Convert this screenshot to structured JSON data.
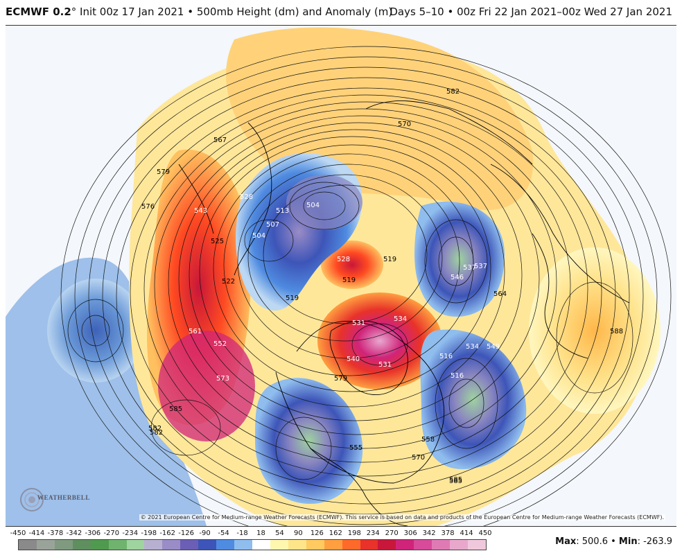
{
  "header": {
    "model": "ECMWF 0.2",
    "degree": "°",
    "init": " Init 00z 17 Jan 2021",
    "bullet": " • ",
    "field": "500mb Height (dm) and Anomaly (m)",
    "valid": "Days 5–10 • 00z Fri 22 Jan 2021–00z Wed 27 Jan 2021"
  },
  "map": {
    "copyright": "© 2021 European Centre for Medium-range Weather Forecasts (ECMWF). This service is based on data and products of the European Centre for Medium-range Weather Forecasts (ECMWF).",
    "logo_text": "WEATHERBELL",
    "contour_labels": [
      "567",
      "579",
      "576",
      "570",
      "582",
      "585",
      "582",
      "513",
      "504",
      "507",
      "504",
      "525",
      "519",
      "528",
      "519",
      "531",
      "534",
      "537",
      "522",
      "540",
      "519",
      "543",
      "552",
      "561",
      "573",
      "585",
      "582",
      "546",
      "516",
      "534",
      "549",
      "564",
      "588",
      "558",
      "570",
      "585",
      "555",
      "579",
      "516",
      "531",
      "537",
      "528"
    ]
  },
  "legend": {
    "ticks": [
      "-450",
      "-414",
      "-378",
      "-342",
      "-306",
      "-270",
      "-234",
      "-198",
      "-162",
      "-126",
      "-90",
      "-54",
      "-18",
      "18",
      "54",
      "90",
      "126",
      "162",
      "198",
      "234",
      "270",
      "306",
      "342",
      "378",
      "414",
      "450"
    ],
    "colors": [
      "#8a8a8a",
      "#9aa39a",
      "#7f9a7f",
      "#5f8f5f",
      "#4f9a4f",
      "#6fb36f",
      "#9fd39f",
      "#b8b0d0",
      "#9a8cc6",
      "#6a5fb5",
      "#3d55b8",
      "#4f8be0",
      "#8fbdee",
      "#ffffff",
      "#fff7b0",
      "#ffe58a",
      "#ffca60",
      "#ff9f40",
      "#ff6a2a",
      "#e8322a",
      "#c8173a",
      "#d0247a",
      "#d84a9a",
      "#e07ab5",
      "#e8a8cc",
      "#f0c8dc"
    ],
    "max_label": "Max",
    "max_value": ": 500.6",
    "sep": " • ",
    "min_label": "Min",
    "min_value": ": -263.9"
  }
}
